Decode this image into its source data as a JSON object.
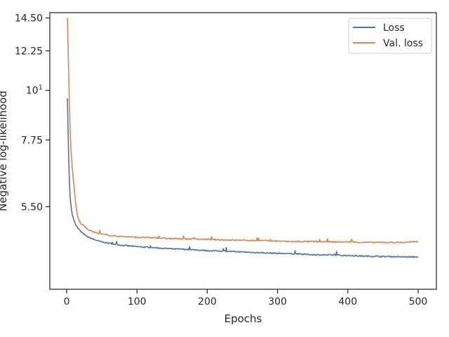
{
  "chart_data": {
    "type": "line",
    "title": "",
    "xlabel": "Epochs",
    "ylabel": "Negative log-likelihood",
    "x_range": [
      0,
      500
    ],
    "xlim": [
      -24,
      526
    ],
    "ylim": [
      3.6,
      14.9
    ],
    "yscale": "log",
    "grid": false,
    "legend_position": "top-right",
    "x_ticks": [
      0,
      100,
      200,
      300,
      400,
      500
    ],
    "x_tick_labels": [
      "0",
      "100",
      "200",
      "300",
      "400",
      "500"
    ],
    "y_ticks": [
      {
        "value": 5.5,
        "label": "5.50",
        "mathtext": false
      },
      {
        "value": 7.75,
        "label": "7.75",
        "mathtext": false
      },
      {
        "value": 10,
        "label": "10",
        "sup": "1",
        "mathtext": true
      },
      {
        "value": 12.25,
        "label": "12.25",
        "mathtext": false
      },
      {
        "value": 14.5,
        "label": "14.50",
        "mathtext": false
      }
    ],
    "series": [
      {
        "name": "Loss",
        "color": "#4c72b0",
        "x": [
          1,
          2,
          3,
          4,
          5,
          6,
          7,
          8,
          10,
          12,
          15,
          20,
          25,
          30,
          40,
          50,
          60,
          70,
          80,
          100,
          120,
          150,
          180,
          200,
          220,
          250,
          280,
          300,
          320,
          350,
          380,
          400,
          420,
          450,
          480,
          500
        ],
        "y": [
          9.6,
          8.1,
          6.9,
          6.2,
          5.75,
          5.55,
          5.4,
          5.28,
          5.15,
          5.05,
          4.95,
          4.84,
          4.77,
          4.71,
          4.64,
          4.59,
          4.56,
          4.53,
          4.51,
          4.48,
          4.46,
          4.43,
          4.41,
          4.39,
          4.38,
          4.36,
          4.34,
          4.33,
          4.32,
          4.3,
          4.29,
          4.28,
          4.27,
          4.26,
          4.25,
          4.25
        ]
      },
      {
        "name": "Val. loss",
        "color": "#dd8452",
        "x": [
          1,
          2,
          3,
          4,
          5,
          6,
          8,
          10,
          12,
          14,
          16,
          18,
          20,
          25,
          30,
          40,
          50,
          60,
          70,
          80,
          100,
          120,
          150,
          180,
          200,
          220,
          250,
          280,
          300,
          320,
          350,
          380,
          400,
          420,
          450,
          480,
          500
        ],
        "y": [
          14.5,
          12.5,
          10.6,
          9.2,
          8.1,
          7.4,
          6.7,
          6.2,
          5.75,
          5.4,
          5.2,
          5.1,
          5.05,
          4.98,
          4.9,
          4.82,
          4.78,
          4.75,
          4.73,
          4.72,
          4.7,
          4.69,
          4.67,
          4.66,
          4.65,
          4.64,
          4.63,
          4.62,
          4.61,
          4.6,
          4.6,
          4.59,
          4.59,
          4.58,
          4.58,
          4.58,
          4.6
        ]
      }
    ]
  }
}
